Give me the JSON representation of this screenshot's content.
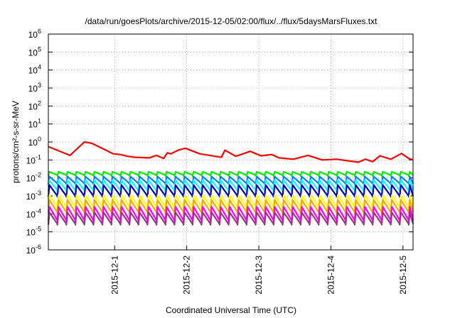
{
  "chart_data": {
    "type": "line",
    "title": "/data/run/goesPlots/archive/2015-12-05/02:00/flux/../flux/5daysMarsFluxes.txt",
    "xlabel": "Coordinated Universal Time (UTC)",
    "ylabel": "protons/cm²-s-sr-MeV",
    "y_scale": "log",
    "ylim": [
      1e-06,
      1000000.0
    ],
    "y_ticks": [
      {
        "base": "10",
        "exp": "-6"
      },
      {
        "base": "10",
        "exp": "-5"
      },
      {
        "base": "10",
        "exp": "-4"
      },
      {
        "base": "10",
        "exp": "-3"
      },
      {
        "base": "10",
        "exp": "-2"
      },
      {
        "base": "10",
        "exp": "-1"
      },
      {
        "base": "10",
        "exp": "0"
      },
      {
        "base": "10",
        "exp": "1"
      },
      {
        "base": "10",
        "exp": "2"
      },
      {
        "base": "10",
        "exp": "3"
      },
      {
        "base": "10",
        "exp": "4"
      },
      {
        "base": "10",
        "exp": "5"
      },
      {
        "base": "10",
        "exp": "6"
      }
    ],
    "xlim": [
      "2015-12-00 02:00",
      "2015-12-05 03:20"
    ],
    "x_ticks": [
      "2015-12-1",
      "2015-12-2",
      "2015-12-3",
      "2015-12-4",
      "2015-12-5"
    ],
    "grid": true,
    "colors": [
      "#ff0000",
      "#00ee00",
      "#0080ff",
      "#00ffff",
      "#0000c0",
      "#ffff00",
      "#ffa500",
      "#ff00ff",
      "#a0308a"
    ],
    "series": [
      {
        "color": "#ff0000",
        "x": [
          0,
          0.3,
          0.5,
          0.6,
          0.8,
          0.9,
          1.0,
          1.1,
          1.2,
          1.4,
          1.5,
          1.6,
          1.65,
          1.7,
          1.8,
          1.9,
          2.1,
          2.4,
          2.45,
          2.6,
          2.8,
          2.95,
          3.1,
          3.2,
          3.4,
          3.6,
          3.8,
          4.0,
          4.3,
          4.4,
          4.5,
          4.6,
          4.75,
          4.9,
          5.0,
          5.06
        ],
        "y": [
          0.55,
          0.18,
          1.0,
          0.85,
          0.35,
          0.22,
          0.2,
          0.16,
          0.14,
          0.13,
          0.18,
          0.12,
          0.25,
          0.22,
          0.35,
          0.45,
          0.22,
          0.14,
          0.35,
          0.16,
          0.3,
          0.17,
          0.2,
          0.13,
          0.11,
          0.18,
          0.1,
          0.11,
          0.075,
          0.11,
          0.08,
          0.17,
          0.11,
          0.23,
          0.12,
          0.1
        ]
      },
      {
        "color": "#00ee00",
        "cycle": 0.125,
        "peak": 0.022,
        "trough": 0.013
      },
      {
        "color": "#0080ff",
        "cycle": 0.125,
        "peak": 0.012,
        "trough": 0.0045
      },
      {
        "color": "#00ffff",
        "cycle": 0.125,
        "peak": 0.0075,
        "trough": 0.0018
      },
      {
        "color": "#0000c0",
        "cycle": 0.125,
        "peak": 0.004,
        "trough": 0.0009
      },
      {
        "color": "#ffff00",
        "cycle": 0.125,
        "peak": 0.0011,
        "trough": 0.00022
      },
      {
        "color": "#ffa500",
        "cycle": 0.125,
        "peak": 0.0006,
        "trough": 0.00011
      },
      {
        "color": "#ff00ff",
        "cycle": 0.125,
        "peak": 0.00025,
        "trough": 4e-05
      },
      {
        "color": "#a0308a",
        "cycle": 0.125,
        "peak": 0.00012,
        "trough": 2.5e-05
      }
    ]
  }
}
